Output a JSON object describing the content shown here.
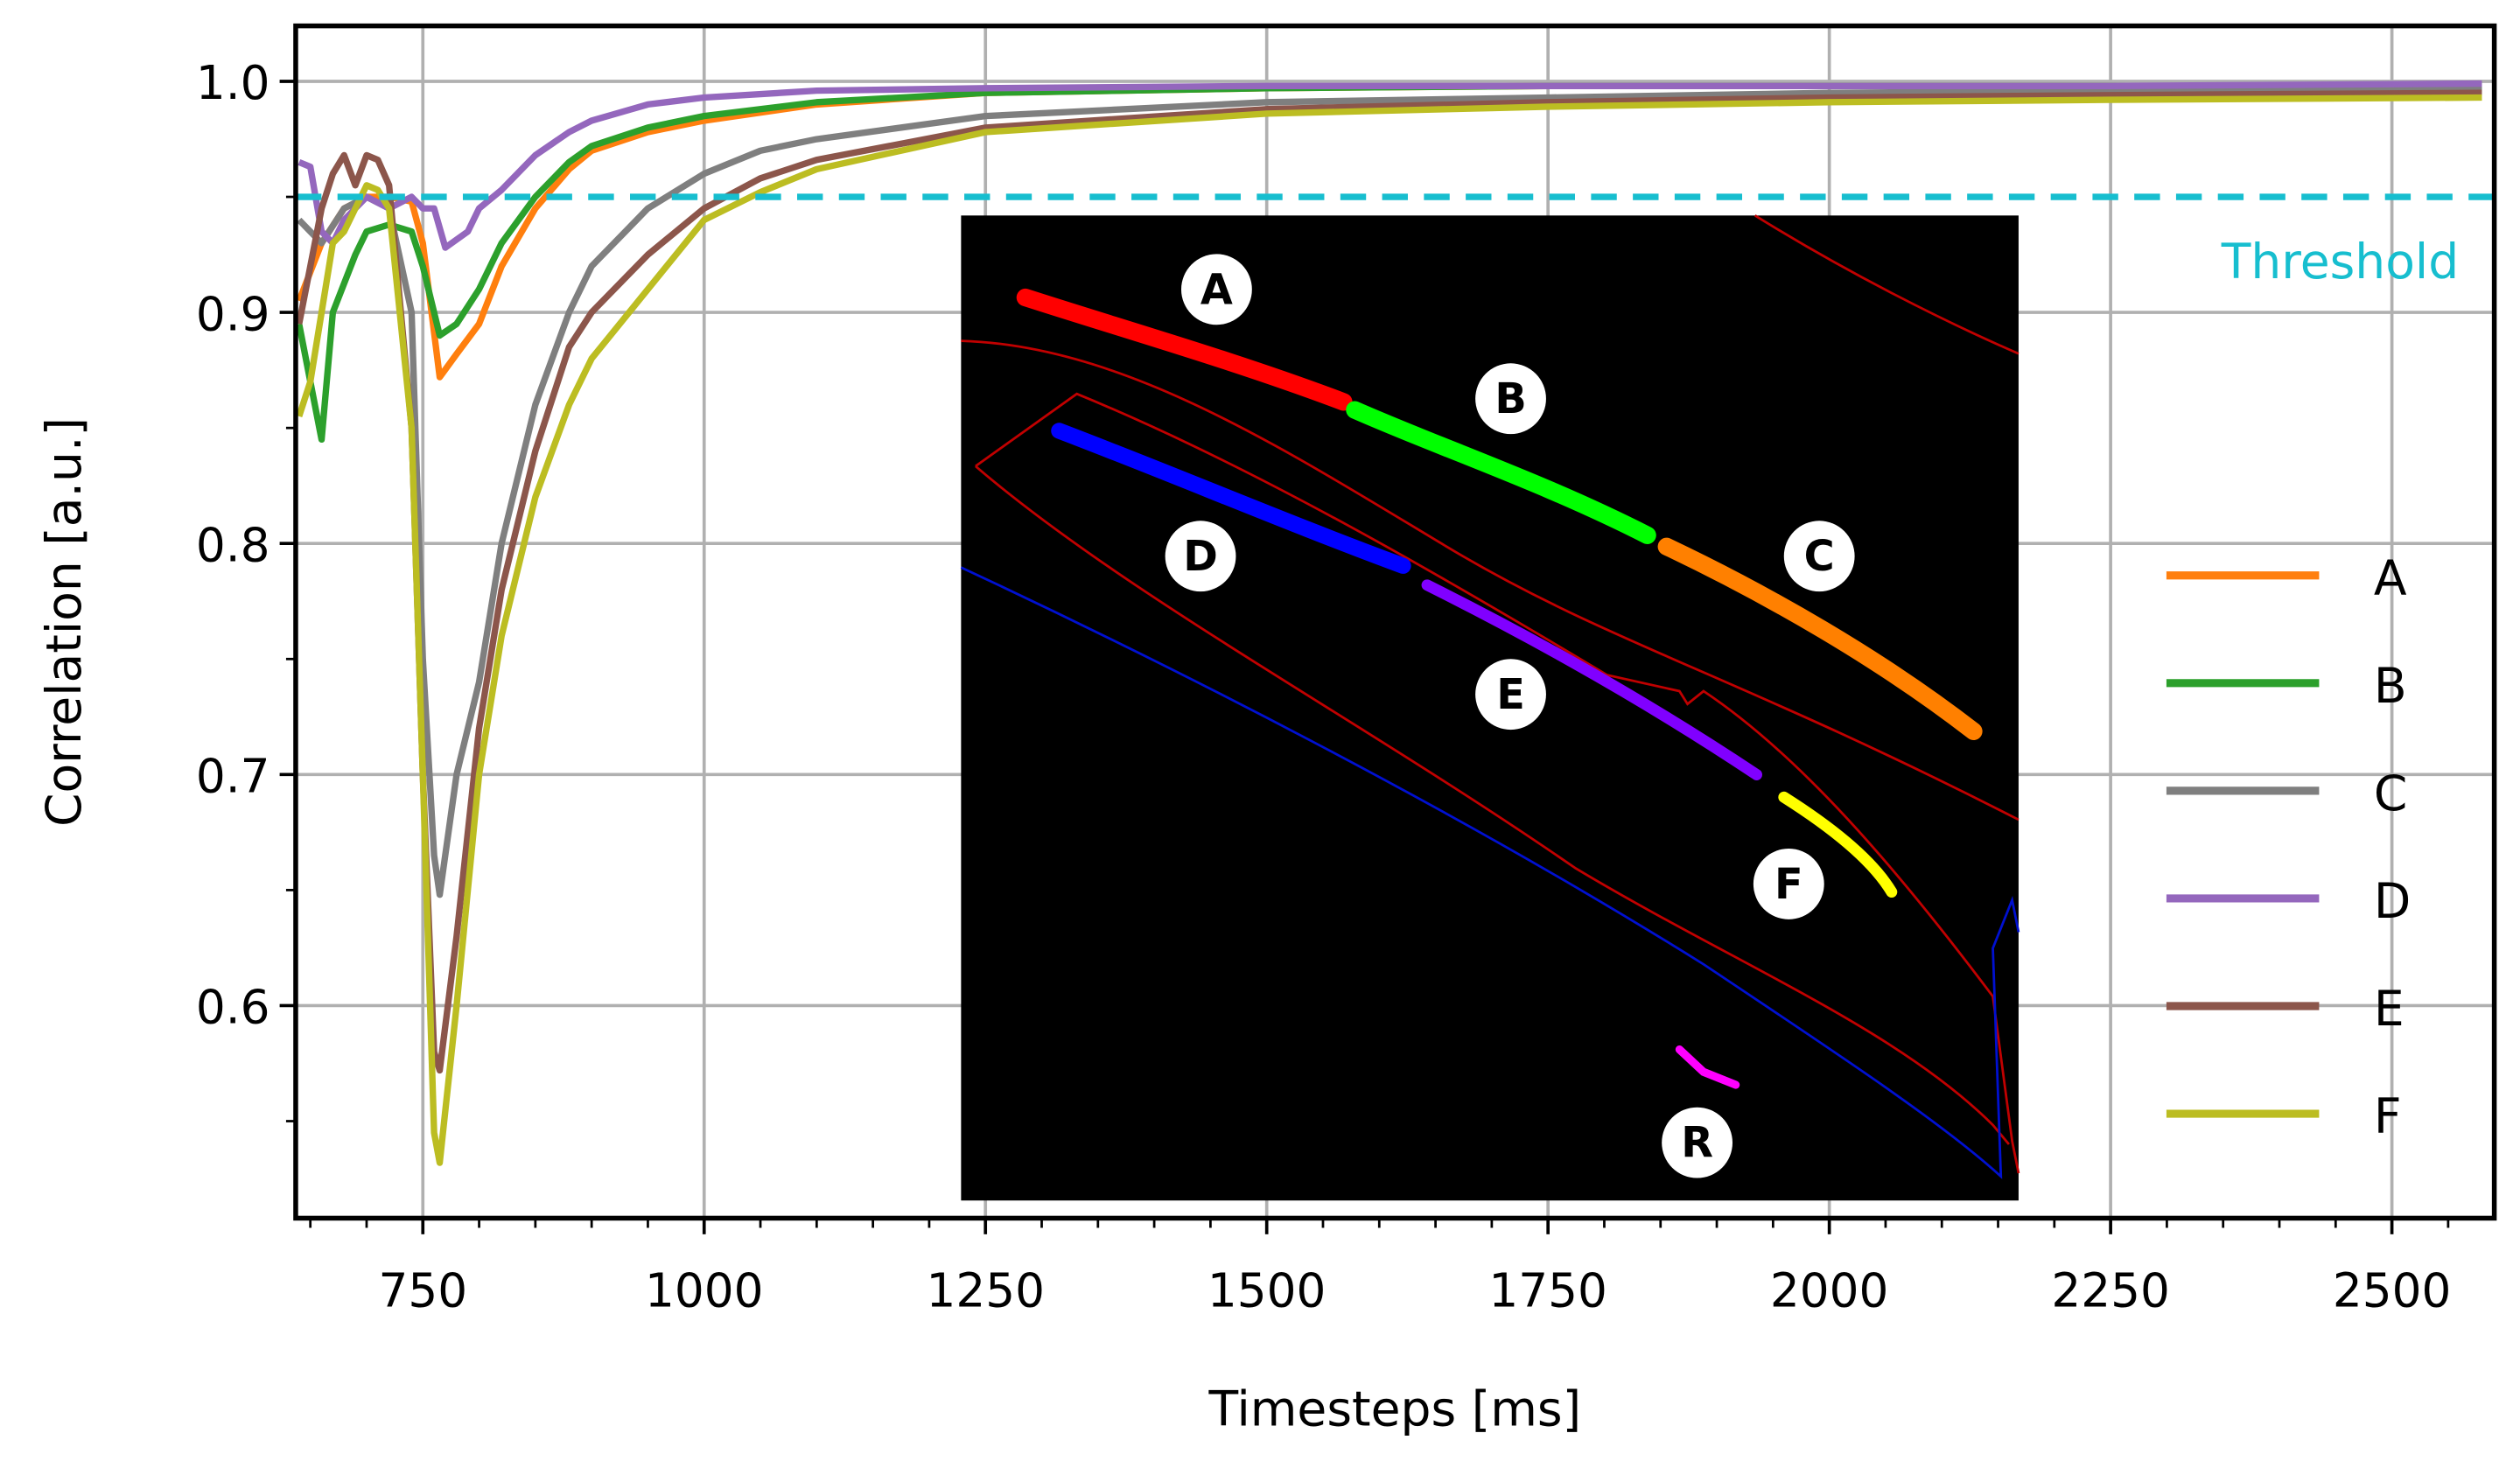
{
  "chart_data": {
    "type": "line",
    "title": "",
    "xlabel": "Timesteps [ms]",
    "ylabel": "Correlation [a.u.]",
    "xlim": [
      637,
      2591
    ],
    "ylim": [
      0.508,
      1.024
    ],
    "xticks": [
      750,
      1000,
      1250,
      1500,
      1750,
      2000,
      2250,
      2500
    ],
    "xtick_labels": [
      "750",
      "1000",
      "1250",
      "1500",
      "1750",
      "2000",
      "2250",
      "2500"
    ],
    "yticks": [
      0.6,
      0.7,
      0.8,
      0.9,
      1.0
    ],
    "ytick_labels": [
      "0.6",
      "0.7",
      "0.8",
      "0.9",
      "1.0"
    ],
    "grid": true,
    "legend_position": "right",
    "threshold": {
      "value": 0.95,
      "label": "Threshold",
      "color": "#17becf",
      "style": "dashed"
    },
    "series": [
      {
        "name": "A",
        "color": "#ff7f0e",
        "x": [
          640,
          660,
          680,
          700,
          720,
          740,
          750,
          765,
          780,
          800,
          820,
          850,
          880,
          900,
          950,
          1000,
          1100,
          1250,
          1500,
          1750,
          2000,
          2250,
          2580
        ],
        "y": [
          0.905,
          0.93,
          0.945,
          0.95,
          0.95,
          0.948,
          0.93,
          0.872,
          0.882,
          0.895,
          0.92,
          0.945,
          0.962,
          0.97,
          0.978,
          0.983,
          0.99,
          0.995,
          0.997,
          0.998,
          0.998,
          0.998,
          0.998
        ]
      },
      {
        "name": "B",
        "color": "#2ca02c",
        "x": [
          640,
          650,
          660,
          670,
          690,
          700,
          720,
          740,
          750,
          765,
          780,
          800,
          820,
          850,
          880,
          900,
          950,
          1000,
          1100,
          1250,
          1500,
          1750,
          2000,
          2250,
          2580
        ],
        "y": [
          0.895,
          0.87,
          0.845,
          0.9,
          0.925,
          0.935,
          0.938,
          0.935,
          0.92,
          0.89,
          0.895,
          0.91,
          0.93,
          0.95,
          0.965,
          0.972,
          0.98,
          0.985,
          0.991,
          0.995,
          0.997,
          0.998,
          0.998,
          0.998,
          0.998
        ]
      },
      {
        "name": "C",
        "color": "#7f7f7f",
        "x": [
          640,
          660,
          680,
          700,
          720,
          740,
          750,
          760,
          765,
          780,
          800,
          820,
          850,
          880,
          900,
          950,
          1000,
          1050,
          1100,
          1250,
          1500,
          1750,
          2000,
          2250,
          2580
        ],
        "y": [
          0.94,
          0.93,
          0.945,
          0.95,
          0.945,
          0.9,
          0.75,
          0.665,
          0.648,
          0.7,
          0.74,
          0.8,
          0.86,
          0.9,
          0.92,
          0.945,
          0.96,
          0.97,
          0.975,
          0.985,
          0.991,
          0.993,
          0.995,
          0.996,
          0.997
        ]
      },
      {
        "name": "D",
        "color": "#9467bd",
        "x": [
          640,
          650,
          660,
          670,
          680,
          690,
          700,
          720,
          740,
          750,
          760,
          770,
          790,
          800,
          820,
          850,
          880,
          900,
          950,
          1000,
          1100,
          1250,
          1500,
          1750,
          2000,
          2250,
          2580
        ],
        "y": [
          0.965,
          0.963,
          0.935,
          0.93,
          0.94,
          0.945,
          0.95,
          0.945,
          0.95,
          0.945,
          0.945,
          0.928,
          0.935,
          0.945,
          0.953,
          0.968,
          0.978,
          0.983,
          0.99,
          0.993,
          0.996,
          0.997,
          0.998,
          0.998,
          0.998,
          0.998,
          0.999
        ]
      },
      {
        "name": "E",
        "color": "#8c564b",
        "x": [
          640,
          650,
          660,
          670,
          680,
          690,
          700,
          710,
          720,
          740,
          750,
          760,
          765,
          780,
          800,
          820,
          850,
          880,
          900,
          950,
          1000,
          1050,
          1100,
          1250,
          1500,
          1750,
          2000,
          2250,
          2580
        ],
        "y": [
          0.895,
          0.92,
          0.945,
          0.96,
          0.968,
          0.955,
          0.968,
          0.966,
          0.955,
          0.85,
          0.7,
          0.58,
          0.572,
          0.63,
          0.72,
          0.78,
          0.84,
          0.885,
          0.9,
          0.925,
          0.945,
          0.958,
          0.966,
          0.98,
          0.988,
          0.991,
          0.993,
          0.994,
          0.995
        ]
      },
      {
        "name": "F",
        "color": "#bcbd22",
        "x": [
          640,
          650,
          660,
          670,
          680,
          700,
          710,
          720,
          740,
          750,
          760,
          765,
          780,
          800,
          820,
          850,
          880,
          900,
          950,
          1000,
          1050,
          1100,
          1250,
          1500,
          1750,
          2000,
          2250,
          2580
        ],
        "y": [
          0.855,
          0.87,
          0.9,
          0.93,
          0.935,
          0.955,
          0.953,
          0.945,
          0.85,
          0.7,
          0.545,
          0.532,
          0.6,
          0.7,
          0.76,
          0.82,
          0.86,
          0.88,
          0.91,
          0.94,
          0.952,
          0.962,
          0.978,
          0.986,
          0.989,
          0.991,
          0.992,
          0.993
        ]
      }
    ],
    "inset": {
      "description": "Black image with colored curve segments labeled A-F and R",
      "labels": [
        "A",
        "B",
        "C",
        "D",
        "E",
        "F",
        "R"
      ],
      "segment_colors": {
        "A": "#ff0000",
        "B": "#00ff00",
        "C": "#ff8000",
        "D": "#0000ff",
        "E": "#8000ff",
        "F": "#ffff00",
        "R": "#ff00ff"
      }
    }
  },
  "legend": {
    "items": [
      {
        "label": "A",
        "color": "#ff7f0e"
      },
      {
        "label": "B",
        "color": "#2ca02c"
      },
      {
        "label": "C",
        "color": "#7f7f7f"
      },
      {
        "label": "D",
        "color": "#9467bd"
      },
      {
        "label": "E",
        "color": "#8c564b"
      },
      {
        "label": "F",
        "color": "#bcbd22"
      }
    ]
  },
  "labels": {
    "xlabel": "Timesteps [ms]",
    "ylabel": "Correlation [a.u.]",
    "threshold": "Threshold"
  }
}
